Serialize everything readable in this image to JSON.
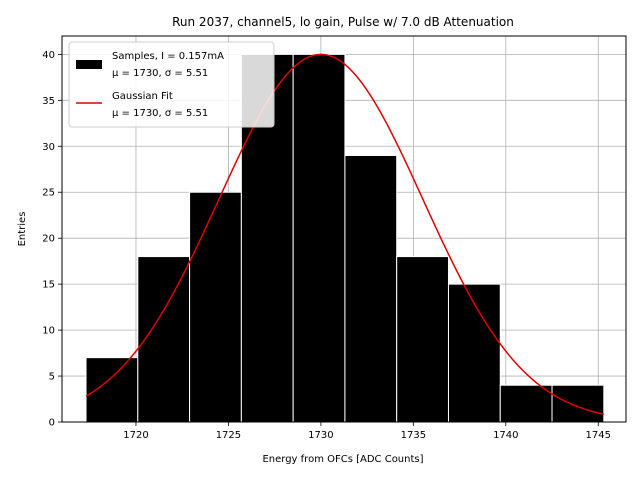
{
  "chart_data": {
    "type": "bar",
    "title": "Run 2037, channel5, lo gain, Pulse w/ 7.0 dB Attenuation",
    "xlabel": "Energy from OFCs [ADC Counts]",
    "ylabel": "Entries",
    "xlim": [
      1716.0,
      1746.5
    ],
    "ylim": [
      0,
      42
    ],
    "xticks": [
      1720,
      1725,
      1730,
      1735,
      1740,
      1745
    ],
    "yticks": [
      0,
      5,
      10,
      15,
      20,
      25,
      30,
      35,
      40
    ],
    "grid": true,
    "legend_position": "top-left",
    "histogram": {
      "bin_edges": [
        1717.3,
        1720.1,
        1722.9,
        1725.7,
        1728.5,
        1731.3,
        1734.1,
        1736.9,
        1739.7,
        1742.5,
        1745.3
      ],
      "counts": [
        7,
        18,
        25,
        40,
        40,
        29,
        18,
        15,
        4,
        4
      ],
      "color": "#000000",
      "edge_color": "#ffffff"
    },
    "fit": {
      "name": "Gaussian Fit",
      "mu": 1730,
      "sigma": 5.51,
      "amplitude": 40,
      "x_range": [
        1717.3,
        1745.3
      ],
      "color": "#e00000"
    },
    "legend": [
      {
        "label_line1": "Samples, I = 0.157mA",
        "label_line2": "μ = 1730, σ = 5.51",
        "kind": "patch",
        "color": "#000000"
      },
      {
        "label_line1": "Gaussian Fit",
        "label_line2": "μ = 1730, σ = 5.51",
        "kind": "line",
        "color": "#e00000"
      }
    ]
  }
}
